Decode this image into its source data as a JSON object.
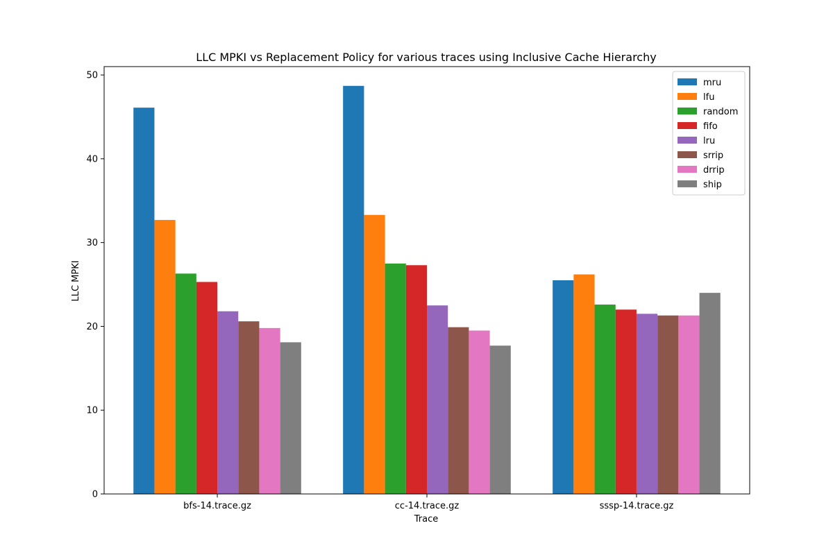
{
  "chart_data": {
    "type": "bar",
    "title": "LLC MPKI vs Replacement Policy for various traces using Inclusive Cache Hierarchy",
    "xlabel": "Trace",
    "ylabel": "LLC MPKI",
    "categories": [
      "bfs-14.trace.gz",
      "cc-14.trace.gz",
      "sssp-14.trace.gz"
    ],
    "ylim": [
      0,
      51
    ],
    "yticks": [
      0,
      10,
      20,
      30,
      40,
      50
    ],
    "grid": false,
    "legend_position": "top-right",
    "series": [
      {
        "name": "mru",
        "color": "#1f77b4",
        "values": [
          46.1,
          48.7,
          25.5
        ]
      },
      {
        "name": "lfu",
        "color": "#ff7f0e",
        "values": [
          32.7,
          33.3,
          26.2
        ]
      },
      {
        "name": "random",
        "color": "#2ca02c",
        "values": [
          26.3,
          27.5,
          22.6
        ]
      },
      {
        "name": "fifo",
        "color": "#d62728",
        "values": [
          25.3,
          27.3,
          22.0
        ]
      },
      {
        "name": "lru",
        "color": "#9467bd",
        "values": [
          21.8,
          22.5,
          21.5
        ]
      },
      {
        "name": "srrip",
        "color": "#8c564b",
        "values": [
          20.6,
          19.9,
          21.3
        ]
      },
      {
        "name": "drrip",
        "color": "#e377c2",
        "values": [
          19.8,
          19.5,
          21.3
        ]
      },
      {
        "name": "ship",
        "color": "#7f7f7f",
        "values": [
          18.1,
          17.7,
          24.0
        ]
      }
    ]
  }
}
